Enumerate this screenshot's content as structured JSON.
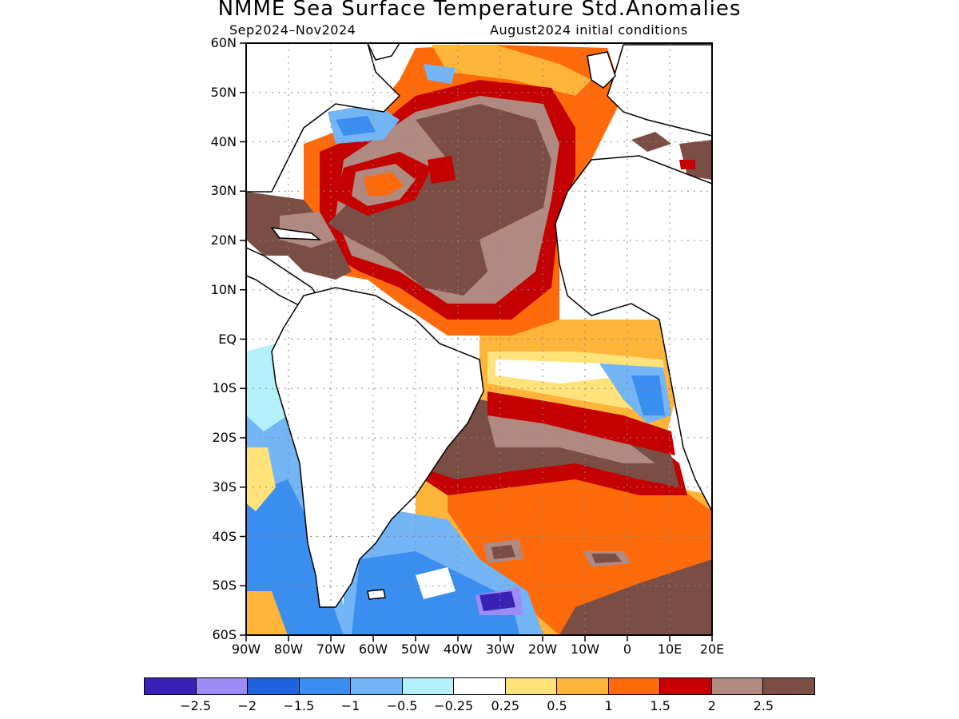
{
  "title": "NMME Sea Surface Temperature Std.Anomalies",
  "subtitle_left": "Sep2024–Nov2024",
  "subtitle_right": "August2024 initial conditions",
  "lat_labels": [
    "60N",
    "50N",
    "40N",
    "30N",
    "20N",
    "10N",
    "EQ",
    "10S",
    "20S",
    "30S",
    "40S",
    "50S",
    "60S"
  ],
  "lon_labels": [
    "90W",
    "80W",
    "70W",
    "60W",
    "50W",
    "40W",
    "30W",
    "20W",
    "10W",
    "0",
    "10E",
    "20E"
  ],
  "legend": {
    "colors": [
      "#3a21b5",
      "#9d8cf5",
      "#1f63e0",
      "#3a8ef0",
      "#73b5f5",
      "#b3f0fa",
      "#ffffff",
      "#ffe27a",
      "#ffb43a",
      "#ff6a0a",
      "#c50000",
      "#b08a80",
      "#7a4d45"
    ],
    "labels": [
      "−2.5",
      "−2",
      "−1.5",
      "−1",
      "−0.5",
      "−0.25",
      "0.25",
      "0.5",
      "1",
      "1.5",
      "2",
      "2.5"
    ]
  },
  "map_regions": [
    {
      "name": "north-atlantic-subtropical-warm-core",
      "level": "2.5"
    },
    {
      "name": "tropical-north-atlantic-warm",
      "level": "2.5"
    },
    {
      "name": "south-atlantic-subtropical-warm-band",
      "level": "2.5"
    },
    {
      "name": "southeast-pacific-cool",
      "level": "-1"
    },
    {
      "name": "southwest-atlantic-cool-patch",
      "level": "-2"
    },
    {
      "name": "equatorial-southeast-atlantic-cool",
      "level": "-1"
    },
    {
      "name": "northwest-atlantic-cool-patch",
      "level": "-1"
    }
  ]
}
